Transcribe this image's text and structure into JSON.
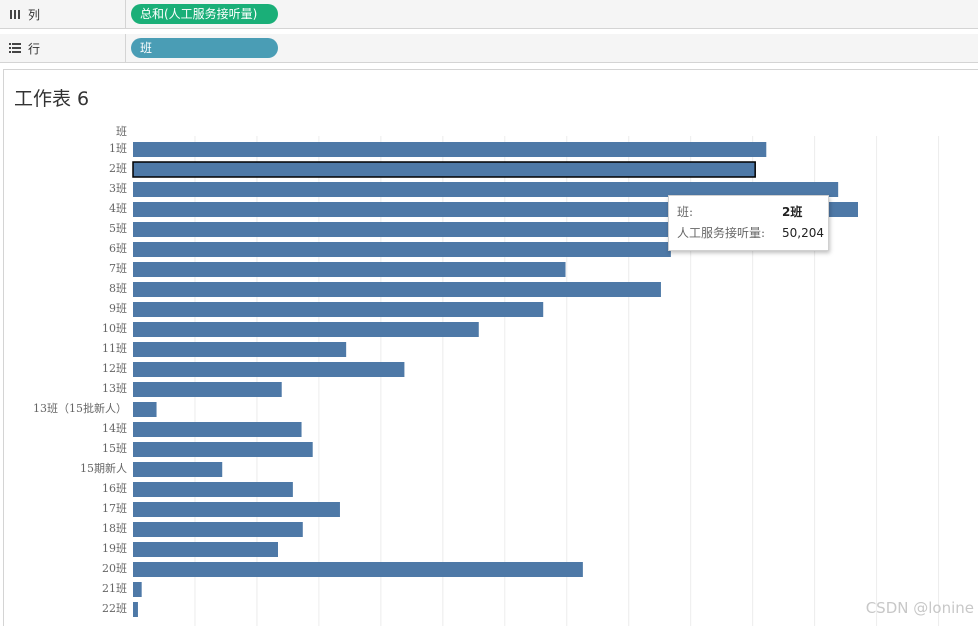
{
  "shelves": {
    "columns": {
      "label": "列",
      "pill": "总和(人工服务接听量)"
    },
    "rows": {
      "label": "行",
      "pill": "班"
    }
  },
  "sheet": {
    "title": "工作表 6"
  },
  "chart_data": {
    "type": "bar",
    "orientation": "horizontal",
    "axis_header": "班",
    "categories": [
      "1班",
      "2班",
      "3班",
      "4班",
      "5班",
      "6班",
      "7班",
      "8班",
      "9班",
      "10班",
      "11班",
      "12班",
      "13班",
      "13班（15批新人）",
      "14班",
      "15班",
      "15期新人",
      "16班",
      "17班",
      "18班",
      "19班",
      "20班",
      "21班",
      "22班"
    ],
    "values": [
      51100,
      50204,
      56900,
      58500,
      51600,
      43400,
      34900,
      42600,
      33100,
      27900,
      17200,
      21900,
      12000,
      1900,
      13600,
      14500,
      7200,
      12900,
      16700,
      13700,
      11700,
      36300,
      700,
      400
    ],
    "selected": "2班",
    "bar_color": "#4e79a7",
    "grid": true
  },
  "tooltip": {
    "key1": "班:",
    "val1": "2班",
    "key2": "人工服务接听量:",
    "val2": "50,204"
  },
  "watermark": "CSDN @lonine"
}
